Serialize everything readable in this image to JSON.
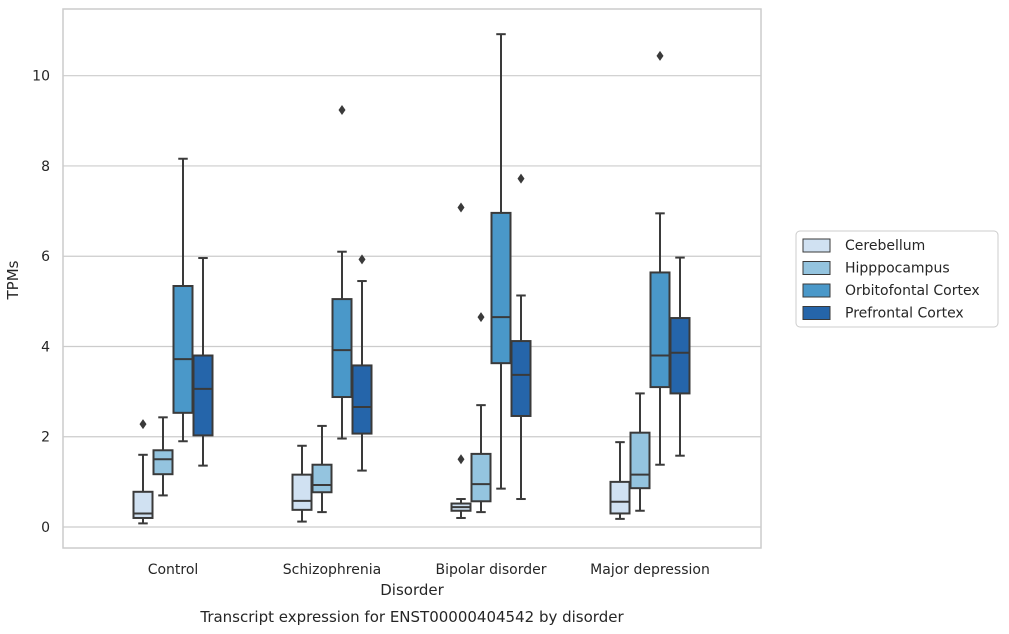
{
  "chart_data": {
    "type": "boxplot",
    "title": "Transcript expression for ENST00000404542 by disorder",
    "xlabel": "Disorder",
    "ylabel": "TPMs",
    "ylim": [
      -0.45,
      11.5
    ],
    "yticks": [
      0,
      2,
      4,
      6,
      8,
      10
    ],
    "ytick_labels": [
      "0",
      "2",
      "4",
      "6",
      "8",
      "10"
    ],
    "grid": "horizontal",
    "legend_position": "right",
    "categories": [
      "Control",
      "Schizophrenia",
      "Bipolar disorder",
      "Major depression"
    ],
    "series": [
      {
        "name": "Cerebellum",
        "color": "#d0e1f2",
        "boxes": [
          {
            "whisker_low": 0.08,
            "q1": 0.2,
            "median": 0.3,
            "q3": 0.78,
            "whisker_high": 1.6,
            "outliers": [
              2.28
            ]
          },
          {
            "whisker_low": 0.12,
            "q1": 0.38,
            "median": 0.58,
            "q3": 1.16,
            "whisker_high": 1.8,
            "outliers": []
          },
          {
            "whisker_low": 0.2,
            "q1": 0.36,
            "median": 0.44,
            "q3": 0.52,
            "whisker_high": 0.62,
            "outliers": [
              1.5,
              7.08
            ]
          },
          {
            "whisker_low": 0.18,
            "q1": 0.3,
            "median": 0.56,
            "q3": 1.0,
            "whisker_high": 1.88,
            "outliers": []
          }
        ]
      },
      {
        "name": "Hipppocampus",
        "color": "#94c4df",
        "boxes": [
          {
            "whisker_low": 0.7,
            "q1": 1.17,
            "median": 1.5,
            "q3": 1.7,
            "whisker_high": 2.43,
            "outliers": []
          },
          {
            "whisker_low": 0.33,
            "q1": 0.77,
            "median": 0.93,
            "q3": 1.38,
            "whisker_high": 2.24,
            "outliers": []
          },
          {
            "whisker_low": 0.33,
            "q1": 0.57,
            "median": 0.95,
            "q3": 1.62,
            "whisker_high": 2.7,
            "outliers": [
              4.65
            ]
          },
          {
            "whisker_low": 0.36,
            "q1": 0.86,
            "median": 1.16,
            "q3": 2.09,
            "whisker_high": 2.96,
            "outliers": []
          }
        ]
      },
      {
        "name": "Orbitofontal Cortex",
        "color": "#4a98c9",
        "boxes": [
          {
            "whisker_low": 1.9,
            "q1": 2.53,
            "median": 3.72,
            "q3": 5.34,
            "whisker_high": 8.16,
            "outliers": []
          },
          {
            "whisker_low": 1.96,
            "q1": 2.88,
            "median": 3.92,
            "q3": 5.05,
            "whisker_high": 6.1,
            "outliers": [
              9.24
            ]
          },
          {
            "whisker_low": 0.85,
            "q1": 3.63,
            "median": 4.65,
            "q3": 6.96,
            "whisker_high": 10.92,
            "outliers": []
          },
          {
            "whisker_low": 1.38,
            "q1": 3.1,
            "median": 3.8,
            "q3": 5.64,
            "whisker_high": 6.95,
            "outliers": [
              10.44
            ]
          }
        ]
      },
      {
        "name": "Prefrontal Cortex",
        "color": "#2565aa",
        "boxes": [
          {
            "whisker_low": 1.36,
            "q1": 2.03,
            "median": 3.06,
            "q3": 3.8,
            "whisker_high": 5.96,
            "outliers": []
          },
          {
            "whisker_low": 1.25,
            "q1": 2.07,
            "median": 2.66,
            "q3": 3.58,
            "whisker_high": 5.45,
            "outliers": [
              5.93
            ]
          },
          {
            "whisker_low": 0.62,
            "q1": 2.46,
            "median": 3.37,
            "q3": 4.12,
            "whisker_high": 5.13,
            "outliers": [
              7.72
            ]
          },
          {
            "whisker_low": 1.58,
            "q1": 2.96,
            "median": 3.86,
            "q3": 4.63,
            "whisker_high": 5.97,
            "outliers": []
          }
        ]
      }
    ]
  }
}
